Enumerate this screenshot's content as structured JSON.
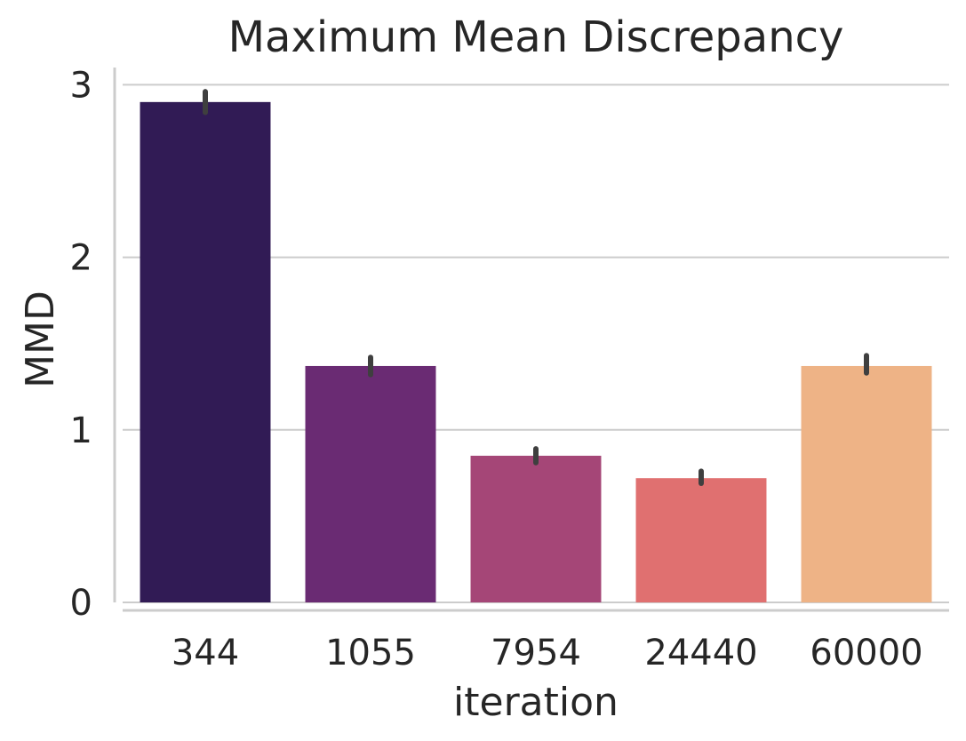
{
  "chart_data": {
    "type": "bar",
    "title": "Maximum Mean Discrepancy",
    "xlabel": "iteration",
    "ylabel": "MMD",
    "categories": [
      "344",
      "1055",
      "7954",
      "24440",
      "60000"
    ],
    "values": [
      2.9,
      1.37,
      0.85,
      0.72,
      1.37
    ],
    "error_bars": [
      [
        2.84,
        2.96
      ],
      [
        1.32,
        1.42
      ],
      [
        0.81,
        0.89
      ],
      [
        0.69,
        0.76
      ],
      [
        1.33,
        1.43
      ]
    ],
    "colors": [
      "#311b55",
      "#6a2b73",
      "#a54677",
      "#e07070",
      "#eeb386"
    ],
    "ylim": [
      0,
      3.1
    ],
    "yticks": [
      "0",
      "1",
      "2",
      "3"
    ],
    "grid": true,
    "grid_axis": "y",
    "errorbar_color": "#3f3f3f"
  }
}
